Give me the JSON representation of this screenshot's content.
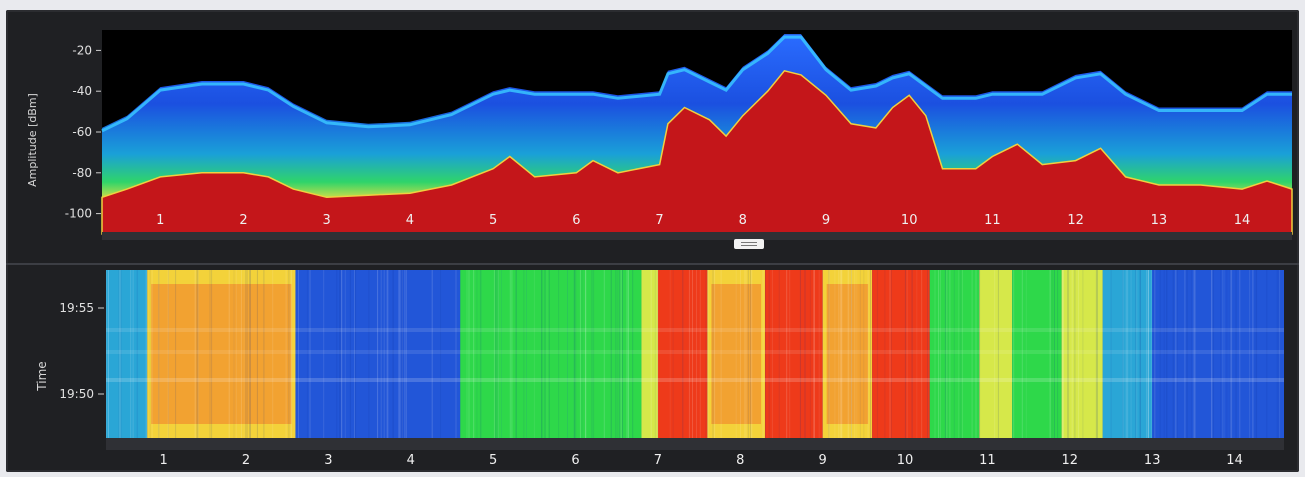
{
  "spectrum": {
    "y_axis_label": "Amplitude [dBm]",
    "y_ticks": [
      "-20",
      "-40",
      "-60",
      "-80",
      "-100"
    ],
    "x_ticks": [
      "1",
      "2",
      "3",
      "4",
      "5",
      "6",
      "7",
      "8",
      "9",
      "10",
      "11",
      "12",
      "13",
      "14"
    ]
  },
  "waterfall": {
    "y_axis_label": "Time",
    "y_ticks": [
      "19:55",
      "19:50"
    ],
    "x_ticks": [
      "1",
      "2",
      "3",
      "4",
      "5",
      "6",
      "7",
      "8",
      "9",
      "10",
      "11",
      "12",
      "13",
      "14"
    ]
  },
  "chart_data": [
    {
      "type": "area",
      "ylabel": "Amplitude [dBm]",
      "ylim": [
        -110,
        -10
      ],
      "y_ticks": [
        -20,
        -40,
        -60,
        -80,
        -100
      ],
      "x_ticks": [
        1,
        2,
        3,
        4,
        5,
        6,
        7,
        8,
        9,
        10,
        11,
        12,
        13,
        14
      ],
      "xlim": [
        0.3,
        14.6
      ],
      "grid": false,
      "series": [
        {
          "x": [
            0.3,
            0.6,
            1.0,
            1.5,
            2.0,
            2.3,
            2.6,
            3.0,
            3.5,
            4.0,
            4.5,
            5.0,
            5.2,
            5.5,
            6.0,
            6.2,
            6.5,
            7.0,
            7.1,
            7.3,
            7.6,
            7.8,
            8.0,
            8.3,
            8.5,
            8.7,
            9.0,
            9.3,
            9.6,
            9.8,
            10.0,
            10.2,
            10.4,
            10.8,
            11.0,
            11.3,
            11.6,
            12.0,
            12.3,
            12.6,
            13.0,
            13.5,
            14.0,
            14.3,
            14.6
          ],
          "values": [
            -92,
            -88,
            -82,
            -80,
            -80,
            -82,
            -88,
            -92,
            -91,
            -90,
            -86,
            -78,
            -72,
            -82,
            -80,
            -74,
            -80,
            -76,
            -56,
            -48,
            -54,
            -62,
            -52,
            -40,
            -30,
            -32,
            -42,
            -56,
            -58,
            -48,
            -42,
            -52,
            -78,
            -78,
            -72,
            -66,
            -76,
            -74,
            -68,
            -82,
            -86,
            -86,
            -88,
            -84,
            -88
          ]
        },
        {
          "x": [
            0.3,
            0.6,
            1.0,
            1.5,
            2.0,
            2.3,
            2.6,
            3.0,
            3.5,
            4.0,
            4.5,
            5.0,
            5.2,
            5.5,
            6.0,
            6.2,
            6.5,
            7.0,
            7.1,
            7.3,
            7.6,
            7.8,
            8.0,
            8.3,
            8.5,
            8.7,
            9.0,
            9.3,
            9.6,
            9.8,
            10.0,
            10.2,
            10.4,
            10.8,
            11.0,
            11.3,
            11.6,
            12.0,
            12.3,
            12.6,
            13.0,
            13.5,
            14.0,
            14.3,
            14.6
          ],
          "values": [
            -58,
            -52,
            -38,
            -35,
            -35,
            -38,
            -46,
            -54,
            -56,
            -55,
            -50,
            -40,
            -38,
            -40,
            -40,
            -40,
            -42,
            -40,
            -30,
            -28,
            -34,
            -38,
            -28,
            -20,
            -12,
            -12,
            -28,
            -38,
            -36,
            -32,
            -30,
            -36,
            -42,
            -42,
            -40,
            -40,
            -40,
            -32,
            -30,
            -40,
            -48,
            -48,
            -48,
            -40,
            -40
          ]
        }
      ]
    },
    {
      "type": "heatmap",
      "ylabel": "Time",
      "y_ticks": [
        "19:55",
        "19:50"
      ],
      "x_ticks": [
        1,
        2,
        3,
        4,
        5,
        6,
        7,
        8,
        9,
        10,
        11,
        12,
        13,
        14
      ],
      "xlim": [
        0.3,
        14.6
      ],
      "grid": false,
      "bands": [
        {
          "x0": 0.3,
          "x1": 0.8,
          "level": 0.35
        },
        {
          "x0": 0.8,
          "x1": 2.6,
          "level": 0.72
        },
        {
          "x0": 2.6,
          "x1": 4.6,
          "level": 0.28
        },
        {
          "x0": 4.6,
          "x1": 5.1,
          "level": 0.55
        },
        {
          "x0": 5.1,
          "x1": 5.4,
          "level": 0.5
        },
        {
          "x0": 5.4,
          "x1": 5.9,
          "level": 0.55
        },
        {
          "x0": 5.9,
          "x1": 6.2,
          "level": 0.5
        },
        {
          "x0": 6.2,
          "x1": 6.8,
          "level": 0.55
        },
        {
          "x0": 6.8,
          "x1": 7.0,
          "level": 0.62
        },
        {
          "x0": 7.0,
          "x1": 7.6,
          "level": 0.95
        },
        {
          "x0": 7.6,
          "x1": 8.3,
          "level": 0.75
        },
        {
          "x0": 8.3,
          "x1": 9.0,
          "level": 0.95
        },
        {
          "x0": 9.0,
          "x1": 9.6,
          "level": 0.75
        },
        {
          "x0": 9.6,
          "x1": 10.3,
          "level": 0.9
        },
        {
          "x0": 10.3,
          "x1": 10.9,
          "level": 0.55
        },
        {
          "x0": 10.9,
          "x1": 11.3,
          "level": 0.68
        },
        {
          "x0": 11.3,
          "x1": 11.9,
          "level": 0.55
        },
        {
          "x0": 11.9,
          "x1": 12.4,
          "level": 0.62
        },
        {
          "x0": 12.4,
          "x1": 13.0,
          "level": 0.4
        },
        {
          "x0": 13.0,
          "x1": 14.6,
          "level": 0.3
        }
      ]
    }
  ]
}
